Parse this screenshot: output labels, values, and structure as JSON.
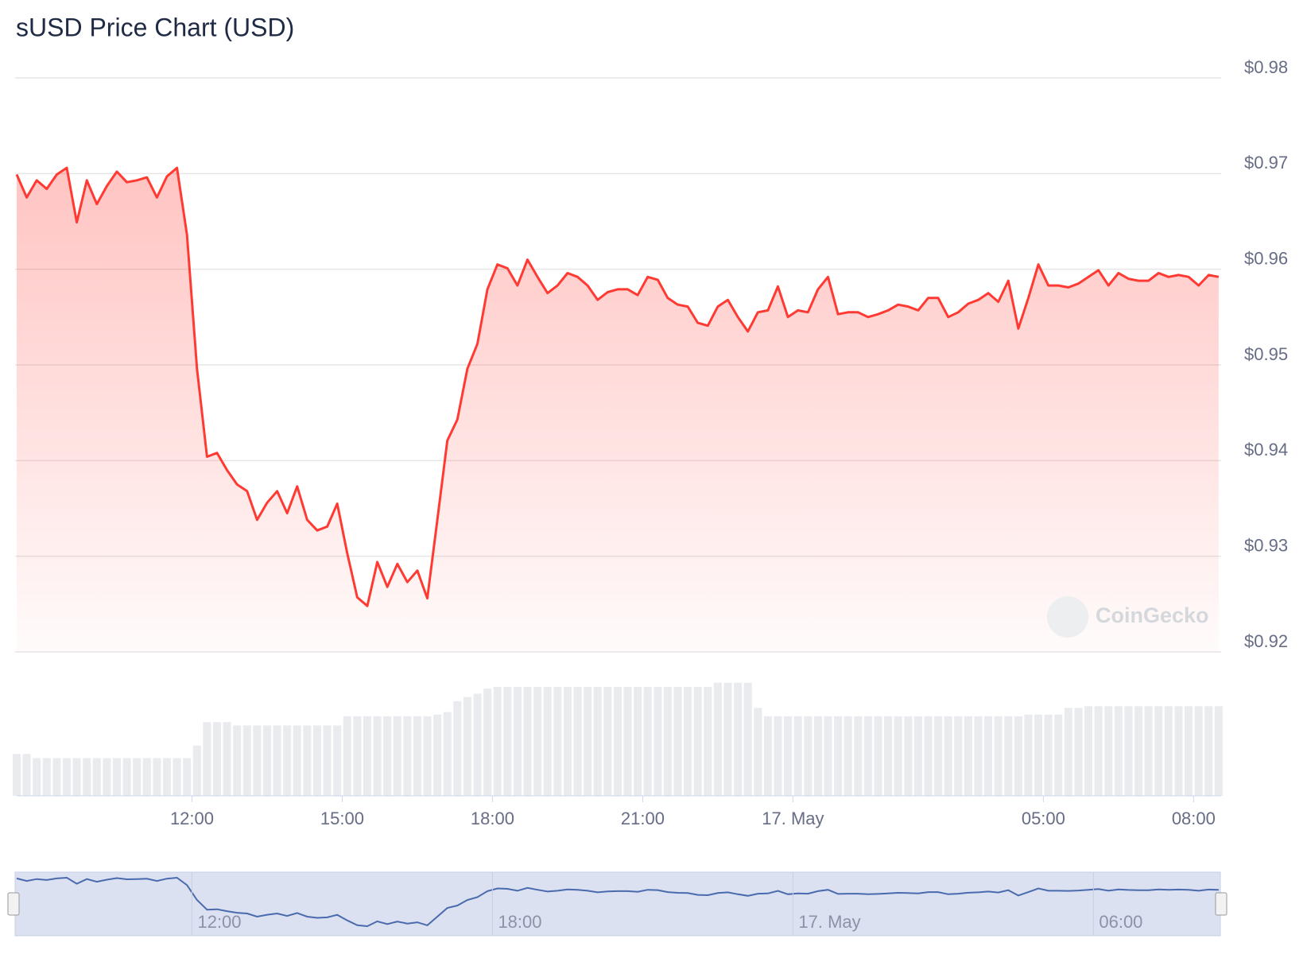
{
  "chart_data": {
    "type": "line",
    "title": "sUSD Price Chart (USD)",
    "watermark": "CoinGecko",
    "x": [
      8.5,
      8.7,
      8.9,
      9.1,
      9.3,
      9.5,
      9.7,
      9.9,
      10.1,
      10.3,
      10.5,
      10.7,
      10.9,
      11.1,
      11.3,
      11.5,
      11.7,
      11.9,
      12.1,
      12.3,
      12.5,
      12.7,
      12.9,
      13.1,
      13.3,
      13.5,
      13.7,
      13.9,
      14.1,
      14.3,
      14.5,
      14.7,
      14.9,
      15.1,
      15.3,
      15.5,
      15.7,
      15.9,
      16.1,
      16.3,
      16.5,
      16.7,
      16.9,
      17.1,
      17.3,
      17.5,
      17.7,
      17.9,
      18.1,
      18.3,
      18.5,
      18.7,
      18.9,
      19.1,
      19.3,
      19.5,
      19.7,
      19.9,
      20.1,
      20.3,
      20.5,
      20.7,
      20.9,
      21.1,
      21.3,
      21.5,
      21.7,
      21.9,
      22.1,
      22.3,
      22.5,
      22.7,
      22.9,
      23.1,
      23.3,
      23.5,
      23.7,
      23.9,
      24.1,
      24.3,
      24.5,
      24.7,
      24.9,
      25.1,
      25.3,
      25.5,
      25.7,
      25.9,
      26.1,
      26.3,
      26.5,
      26.7,
      26.9,
      27.1,
      27.3,
      27.5,
      27.7,
      27.9,
      28.1,
      28.3,
      28.5,
      28.7,
      28.9,
      29.1,
      29.3,
      29.5,
      29.7,
      29.9,
      30.1,
      30.3,
      30.5,
      30.7,
      30.9,
      31.1,
      31.3,
      31.5,
      31.7,
      31.9,
      32.1,
      32.3,
      32.5
    ],
    "series": [
      {
        "color": "#ff3a33",
        "values": [
          0.9699,
          0.9675,
          0.9693,
          0.9684,
          0.9699,
          0.9706,
          0.9649,
          0.9693,
          0.9668,
          0.9687,
          0.9702,
          0.9691,
          0.9693,
          0.9696,
          0.9675,
          0.9697,
          0.9706,
          0.9636,
          0.9496,
          0.9404,
          0.9408,
          0.939,
          0.9375,
          0.9368,
          0.9338,
          0.9356,
          0.9368,
          0.9345,
          0.9373,
          0.9338,
          0.9327,
          0.9331,
          0.9355,
          0.9303,
          0.9257,
          0.9248,
          0.9294,
          0.9268,
          0.9292,
          0.9273,
          0.9285,
          0.9256,
          0.9338,
          0.9421,
          0.9443,
          0.9496,
          0.9522,
          0.9579,
          0.9605,
          0.9601,
          0.9583,
          0.961,
          0.9592,
          0.9575,
          0.9583,
          0.9596,
          0.9592,
          0.9583,
          0.9568,
          0.9576,
          0.9579,
          0.9579,
          0.9573,
          0.9592,
          0.9589,
          0.957,
          0.9563,
          0.9561,
          0.9544,
          0.9541,
          0.9561,
          0.9568,
          0.955,
          0.9535,
          0.9555,
          0.9557,
          0.9582,
          0.955,
          0.9557,
          0.9555,
          0.9579,
          0.9592,
          0.9553,
          0.9555,
          0.9555,
          0.955,
          0.9553,
          0.9557,
          0.9563,
          0.9561,
          0.9557,
          0.957,
          0.957,
          0.955,
          0.9555,
          0.9564,
          0.9568,
          0.9575,
          0.9566,
          0.9588,
          0.9538,
          0.957,
          0.9605,
          0.9583,
          0.9583,
          0.9581,
          0.9585,
          0.9592,
          0.9599,
          0.9583,
          0.9596,
          0.959,
          0.9588,
          0.9588,
          0.9596,
          0.9592,
          0.9594,
          0.9592,
          0.9583,
          0.9594,
          0.9592
        ]
      },
      {
        "color": "#e9ebee",
        "axis": "y2",
        "values": [
          50,
          50,
          45,
          45,
          45,
          45,
          45,
          45,
          45,
          45,
          45,
          45,
          45,
          45,
          45,
          45,
          45,
          45,
          60,
          88,
          88,
          88,
          84,
          84,
          84,
          84,
          84,
          84,
          84,
          84,
          84,
          84,
          84,
          95,
          95,
          95,
          95,
          95,
          95,
          95,
          95,
          95,
          97,
          100,
          113,
          118,
          122,
          128,
          130,
          130,
          130,
          130,
          130,
          130,
          130,
          130,
          130,
          130,
          130,
          130,
          130,
          130,
          130,
          130,
          130,
          130,
          130,
          130,
          130,
          130,
          135,
          135,
          135,
          135,
          105,
          95,
          95,
          95,
          95,
          95,
          95,
          95,
          95,
          95,
          95,
          95,
          95,
          95,
          95,
          95,
          95,
          95,
          95,
          95,
          95,
          95,
          95,
          95,
          95,
          95,
          95,
          97,
          97,
          97,
          97,
          105,
          105,
          107,
          107,
          107,
          107,
          107,
          107,
          107,
          107,
          107,
          107,
          107,
          107,
          107,
          107
        ]
      }
    ],
    "xlim": [
      8.5,
      32.55
    ],
    "xticks": [
      {
        "value": 12,
        "label": "12:00"
      },
      {
        "value": 15,
        "label": "15:00"
      },
      {
        "value": 18,
        "label": "18:00"
      },
      {
        "value": 21,
        "label": "21:00"
      },
      {
        "value": 24,
        "label": "17. May"
      },
      {
        "value": 29,
        "label": "05:00"
      },
      {
        "value": 32,
        "label": "08:00"
      }
    ],
    "ylim": [
      0.92,
      0.98
    ],
    "yticks": [
      {
        "value": 0.92,
        "label": "$0.92"
      },
      {
        "value": 0.93,
        "label": "$0.93"
      },
      {
        "value": 0.94,
        "label": "$0.94"
      },
      {
        "value": 0.95,
        "label": "$0.95"
      },
      {
        "value": 0.96,
        "label": "$0.96"
      },
      {
        "value": 0.97,
        "label": "$0.97"
      },
      {
        "value": 0.98,
        "label": "$0.98"
      }
    ],
    "y2lim": [
      0,
      150
    ],
    "grid": true,
    "navigator_color": "#4a6aae",
    "navigator_xticks": [
      {
        "value": 12,
        "label": "12:00"
      },
      {
        "value": 18,
        "label": "18:00"
      },
      {
        "value": 24,
        "label": "17. May"
      },
      {
        "value": 30,
        "label": "06:00"
      }
    ]
  }
}
